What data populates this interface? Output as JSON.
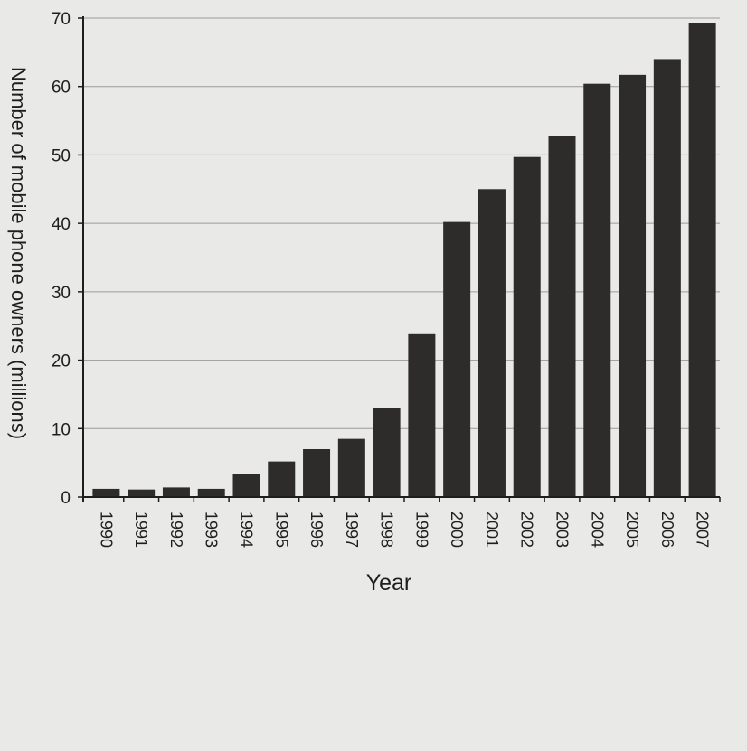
{
  "chart_data": {
    "type": "bar",
    "title": "",
    "xlabel": "Year",
    "ylabel": "Number of mobile phone owners (millions)",
    "ylim": [
      0,
      70
    ],
    "yticks": [
      0,
      10,
      20,
      30,
      40,
      50,
      60,
      70
    ],
    "grid": true,
    "legend": "none",
    "categories": [
      "1990",
      "1991",
      "1992",
      "1993",
      "1994",
      "1995",
      "1996",
      "1997",
      "1998",
      "1999",
      "2000",
      "2001",
      "2002",
      "2003",
      "2004",
      "2005",
      "2006",
      "2007"
    ],
    "values": [
      1.2,
      1.1,
      1.4,
      1.2,
      3.4,
      5.2,
      7.0,
      8.5,
      13.0,
      23.8,
      40.2,
      45.0,
      49.7,
      52.7,
      60.4,
      61.7,
      64.0,
      69.3
    ],
    "colors": {
      "bar": "#2e2c2b",
      "grid": "#9a9a9a",
      "axis": "#1e1e1e",
      "background": "#e9e9e7"
    }
  }
}
